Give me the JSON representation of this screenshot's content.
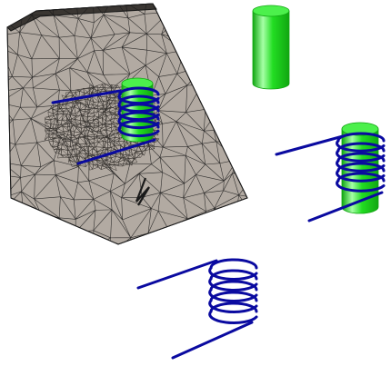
{
  "scene": {
    "background_color": "#ffffff",
    "mesh": {
      "fill_color": "#b2aaa2",
      "edge_color": "#1a1a1a",
      "dense_region_color": "#3a3632"
    },
    "cylinder": {
      "body_color": "#22dd22",
      "shade_color": "#11a611",
      "highlight_color": "#a6ffa6",
      "top_color": "#4cf04c"
    },
    "coil": {
      "wire_color": "#0a0aa0",
      "turns": 5
    },
    "objects": [
      "meshed-block-with-embedded-coil-and-core",
      "standalone-cylinder-core",
      "coil-wound-on-cylinder-core",
      "standalone-helical-coil"
    ]
  }
}
